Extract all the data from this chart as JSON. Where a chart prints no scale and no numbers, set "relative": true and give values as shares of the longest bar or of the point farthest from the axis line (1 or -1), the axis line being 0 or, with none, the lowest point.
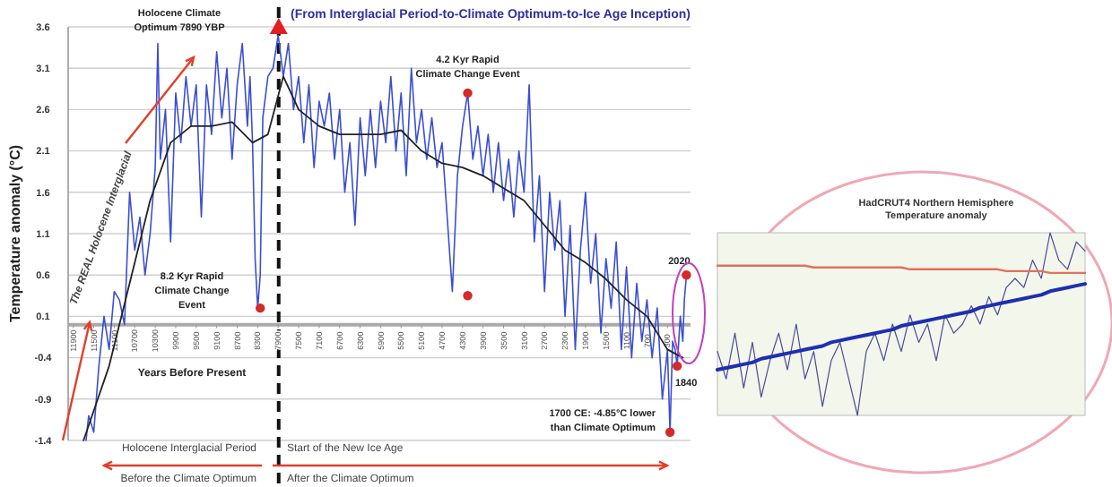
{
  "chart_data": [
    {
      "type": "line",
      "title": "(From Interglacial Period-to-Climate Optimum-to-Ice Age Inception)",
      "xlabel": "Years Before Present",
      "ylabel": "Temperature anomaly (°C)",
      "xlim": [
        12000,
        -150
      ],
      "ylim": [
        -1.4,
        3.6
      ],
      "xticks": [
        11900,
        11500,
        11100,
        10700,
        10300,
        9900,
        9500,
        9100,
        8700,
        8300,
        7900,
        7500,
        7100,
        6700,
        6300,
        5900,
        5500,
        5100,
        4700,
        4300,
        3900,
        3500,
        3100,
        2700,
        2300,
        1900,
        1500,
        1100,
        700,
        300
      ],
      "yticks": [
        3.6,
        3.1,
        2.6,
        2.1,
        1.6,
        1.1,
        0.6,
        0.1,
        -0.4,
        -0.9,
        -1.4
      ],
      "grid": "y",
      "series": [
        {
          "color": "#3b4fd0",
          "x": [
            11650,
            11600,
            11500,
            11400,
            11300,
            11200,
            11100,
            11000,
            10900,
            10800,
            10700,
            10600,
            10500,
            10400,
            10300,
            10250,
            10200,
            10100,
            10000,
            9900,
            9800,
            9700,
            9600,
            9500,
            9400,
            9300,
            9200,
            9100,
            9000,
            8900,
            8800,
            8700,
            8600,
            8500,
            8450,
            8400,
            8350,
            8300,
            8250,
            8200,
            8100,
            8000,
            7900,
            7800,
            7700,
            7600,
            7500,
            7400,
            7300,
            7200,
            7100,
            7000,
            6900,
            6800,
            6700,
            6600,
            6500,
            6400,
            6300,
            6200,
            6100,
            6000,
            5900,
            5800,
            5700,
            5600,
            5500,
            5400,
            5300,
            5200,
            5100,
            5000,
            4900,
            4800,
            4700,
            4600,
            4500,
            4400,
            4300,
            4200,
            4100,
            4000,
            3900,
            3800,
            3700,
            3600,
            3500,
            3400,
            3300,
            3200,
            3100,
            3000,
            2900,
            2800,
            2700,
            2600,
            2500,
            2400,
            2300,
            2200,
            2100,
            2000,
            1900,
            1800,
            1700,
            1600,
            1500,
            1400,
            1300,
            1200,
            1100,
            1000,
            900,
            800,
            700,
            600,
            500,
            400,
            300,
            250,
            200,
            150,
            110,
            50,
            0,
            -30,
            -70
          ],
          "values": [
            -1.4,
            -1.1,
            -1.3,
            -0.5,
            0.1,
            -0.3,
            0.4,
            0.3,
            0.0,
            1.6,
            0.9,
            1.3,
            0.6,
            1.1,
            1.9,
            3.4,
            2.0,
            2.6,
            1.0,
            2.8,
            2.2,
            3.0,
            2.4,
            2.9,
            1.3,
            2.9,
            2.3,
            3.3,
            2.5,
            3.1,
            2.0,
            2.9,
            3.4,
            2.4,
            3.0,
            2.2,
            0.8,
            0.2,
            0.6,
            2.5,
            3.0,
            3.1,
            3.5,
            3.0,
            3.4,
            2.6,
            3.0,
            2.2,
            2.9,
            1.9,
            2.7,
            2.4,
            2.8,
            2.0,
            2.6,
            1.6,
            2.2,
            1.2,
            2.5,
            1.8,
            2.6,
            1.9,
            2.7,
            2.2,
            3.0,
            2.1,
            2.8,
            1.8,
            3.1,
            2.2,
            2.6,
            2.0,
            2.5,
            1.9,
            2.2,
            1.3,
            0.4,
            1.8,
            2.4,
            2.8,
            2.0,
            2.4,
            1.8,
            2.3,
            1.6,
            2.2,
            1.5,
            2.0,
            1.3,
            2.1,
            1.6,
            2.9,
            1.0,
            1.8,
            0.4,
            1.6,
            0.9,
            1.5,
            0.1,
            1.2,
            -0.3,
            0.9,
            1.6,
            0.5,
            1.1,
            -0.1,
            0.8,
            0.2,
            1.0,
            -0.3,
            0.7,
            -0.4,
            0.5,
            -0.2,
            0.3,
            -0.4,
            0.2,
            -0.9,
            -0.3,
            -1.3,
            -0.2,
            -0.3,
            -0.5,
            0.1,
            -0.2,
            0.3,
            0.6
          ]
        },
        {
          "color": "#222222",
          "x": [
            11700,
            11200,
            10800,
            10400,
            10000,
            9600,
            9200,
            8800,
            8400,
            8100,
            7800,
            7500,
            7100,
            6700,
            6300,
            5900,
            5500,
            5100,
            4700,
            4300,
            3900,
            3500,
            3100,
            2700,
            2300,
            1900,
            1500,
            1100,
            700,
            300,
            0
          ],
          "values": [
            -1.4,
            -0.5,
            0.5,
            1.5,
            2.2,
            2.4,
            2.4,
            2.45,
            2.2,
            2.3,
            3.0,
            2.6,
            2.4,
            2.3,
            2.3,
            2.3,
            2.35,
            2.1,
            1.95,
            1.9,
            1.8,
            1.65,
            1.5,
            1.2,
            0.9,
            0.75,
            0.55,
            0.3,
            0.1,
            -0.3,
            -0.4
          ]
        },
        {
          "type": "scatter",
          "marker": "circle",
          "color": "#d42a2a",
          "x": [
            8250,
            4200,
            4200,
            250,
            110,
            -70
          ],
          "values": [
            0.2,
            2.8,
            0.35,
            -1.3,
            -0.5,
            0.6
          ]
        },
        {
          "type": "scatter",
          "marker": "triangle",
          "color": "#e02020",
          "x": [
            7890
          ],
          "values": [
            3.6
          ]
        }
      ],
      "ref_lines": [
        {
          "axis": "x",
          "value": 7890,
          "color": "#111111",
          "line_style": "dashed"
        }
      ],
      "annotations": [
        "Holocene Climate Optimum 7890 YBP",
        "8.2 Kyr Rapid Climate Change Event",
        {
          "text": "4.2 Kyr Rapid Climate Change Event",
          "x": 4200,
          "y": 2.8
        },
        {
          "text": "1700 CE: -4.85°C lower than Climate Optimum",
          "x": 250,
          "y": -1.3
        },
        {
          "text": "2020",
          "x": -70,
          "y": 0.6
        },
        {
          "text": "1840",
          "x": 110,
          "y": -0.5
        },
        "The REAL Holocene Interglacial",
        "Holocene Interglacial Period",
        "Start of the New Ice Age",
        "Before the Climate Optimum",
        "After the Climate Optimum"
      ]
    },
    {
      "type": "line",
      "title": "HadCRUT4 Northern Hemisphere Temperature anomaly",
      "relative": true,
      "categories": [
        null,
        null,
        null,
        null,
        null,
        null,
        null,
        null,
        null,
        null,
        null,
        null,
        null,
        null,
        null,
        null,
        null,
        null,
        null,
        null,
        null,
        null,
        null,
        null,
        null,
        null,
        null,
        null,
        null,
        null,
        null,
        null,
        null,
        null,
        null,
        null,
        null,
        null,
        null,
        null,
        null,
        null,
        null
      ],
      "series": [
        {
          "color": "#4a4a9a",
          "values": [
            0.35,
            0.2,
            0.45,
            0.15,
            0.4,
            0.1,
            0.3,
            0.45,
            0.25,
            0.5,
            0.2,
            0.35,
            0.05,
            0.3,
            0.4,
            0.2,
            0.0,
            0.35,
            0.45,
            0.3,
            0.5,
            0.35,
            0.55,
            0.4,
            0.5,
            0.3,
            0.55,
            0.45,
            0.5,
            0.6,
            0.5,
            0.65,
            0.55,
            0.7,
            0.75,
            0.7,
            0.85,
            0.75,
            1.0,
            0.85,
            0.8,
            0.95,
            0.9
          ]
        },
        {
          "color": "#1f2fb0",
          "values": [
            0.25,
            0.26,
            0.27,
            0.28,
            0.29,
            0.31,
            0.32,
            0.33,
            0.34,
            0.35,
            0.36,
            0.37,
            0.38,
            0.4,
            0.41,
            0.42,
            0.43,
            0.44,
            0.45,
            0.46,
            0.47,
            0.49,
            0.5,
            0.51,
            0.52,
            0.53,
            0.54,
            0.55,
            0.56,
            0.57,
            0.59,
            0.6,
            0.61,
            0.62,
            0.63,
            0.64,
            0.65,
            0.66,
            0.68,
            0.69,
            0.7,
            0.71,
            0.72
          ]
        },
        {
          "color": "#e07060",
          "values": [
            0.82,
            0.82,
            0.82,
            0.82,
            0.82,
            0.82,
            0.82,
            0.82,
            0.82,
            0.82,
            0.82,
            0.81,
            0.81,
            0.81,
            0.81,
            0.81,
            0.81,
            0.81,
            0.81,
            0.81,
            0.81,
            0.81,
            0.8,
            0.8,
            0.8,
            0.8,
            0.8,
            0.8,
            0.8,
            0.8,
            0.8,
            0.8,
            0.8,
            0.79,
            0.79,
            0.79,
            0.79,
            0.79,
            0.78,
            0.78,
            0.78,
            0.78,
            0.78
          ]
        }
      ]
    }
  ]
}
